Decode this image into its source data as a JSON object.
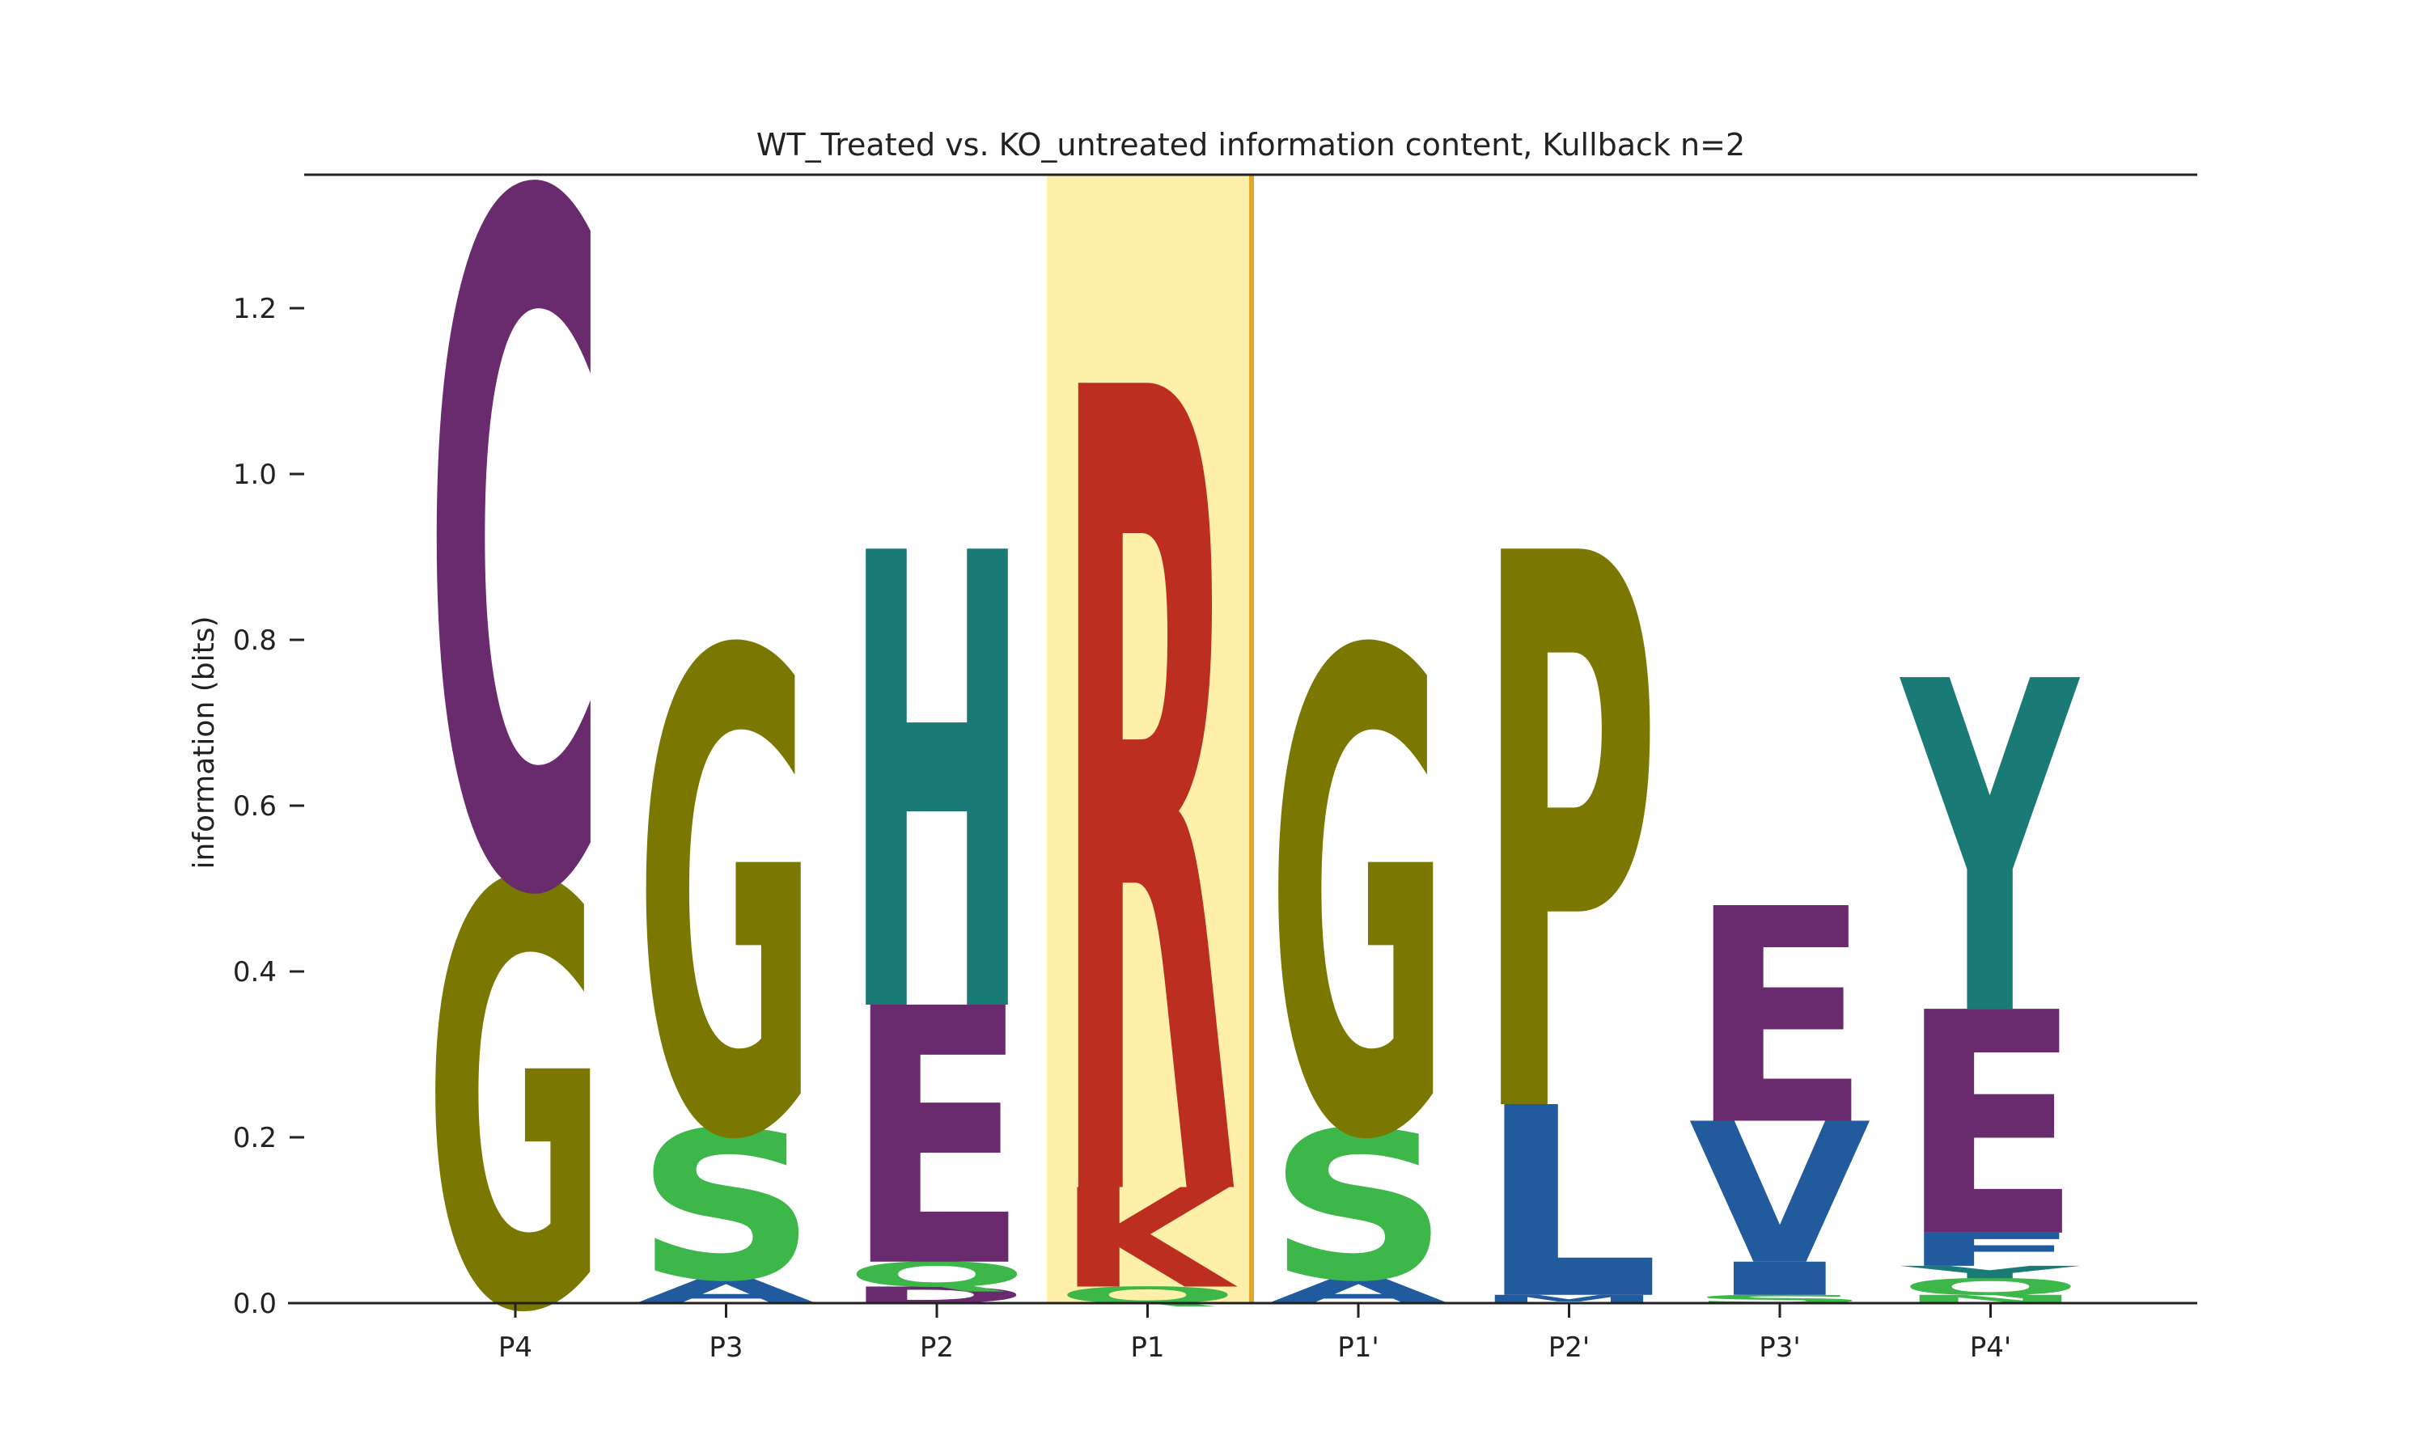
{
  "chart_data": {
    "type": "sequence-logo",
    "title": "WT_Treated vs. KO_untreated information content, Kullback n=2",
    "ylabel": "information (bits)",
    "xlabel": "",
    "ylim": [
      0,
      1.36
    ],
    "yticks": [
      "0.0",
      "0.2",
      "0.4",
      "0.6",
      "0.8",
      "1.0",
      "1.2"
    ],
    "yticks_values": [
      0,
      0.2,
      0.4,
      0.6,
      0.8,
      1.0,
      1.2
    ],
    "highlighted_position": "P1",
    "highlight_color": "#fef0a8",
    "highlight_edge_color": "#e0a82a",
    "residue_colors": {
      "C": "#6a2b6e",
      "G": "#7a7800",
      "S": "#3db74a",
      "A": "#225a9e",
      "H": "#1a7a76",
      "E": "#6a2b6e",
      "D": "#6a2b6e",
      "Q": "#3db74a",
      "R": "#bc2e20",
      "K": "#bc2e20",
      "P": "#7a7800",
      "L": "#225a9e",
      "V": "#225a9e",
      "I": "#225a9e",
      "M": "#225a9e",
      "F": "#225a9e",
      "Y": "#1a7a76",
      "N": "#3db74a",
      "T": "#3db74a",
      "W": "#225a9e"
    },
    "positions": [
      {
        "label": "P4",
        "letters": [
          {
            "aa": "G",
            "height": 0.51
          },
          {
            "aa": "C",
            "height": 0.83
          }
        ]
      },
      {
        "label": "P3",
        "letters": [
          {
            "aa": "A",
            "height": 0.03
          },
          {
            "aa": "S",
            "height": 0.18
          },
          {
            "aa": "G",
            "height": 0.58
          }
        ]
      },
      {
        "label": "P2",
        "letters": [
          {
            "aa": "D",
            "height": 0.02
          },
          {
            "aa": "Q",
            "height": 0.03
          },
          {
            "aa": "E",
            "height": 0.31
          },
          {
            "aa": "H",
            "height": 0.55
          }
        ]
      },
      {
        "label": "P1",
        "letters": [
          {
            "aa": "Q",
            "height": 0.02
          },
          {
            "aa": "K",
            "height": 0.12
          },
          {
            "aa": "R",
            "height": 0.97
          }
        ]
      },
      {
        "label": "P1'",
        "letters": [
          {
            "aa": "A",
            "height": 0.03
          },
          {
            "aa": "S",
            "height": 0.18
          },
          {
            "aa": "G",
            "height": 0.58
          }
        ]
      },
      {
        "label": "P2'",
        "letters": [
          {
            "aa": "M",
            "height": 0.01
          },
          {
            "aa": "L",
            "height": 0.23
          },
          {
            "aa": "P",
            "height": 0.67
          }
        ]
      },
      {
        "label": "P3'",
        "letters": [
          {
            "aa": "S",
            "height": 0.01
          },
          {
            "aa": "I",
            "height": 0.04
          },
          {
            "aa": "V",
            "height": 0.17
          },
          {
            "aa": "E",
            "height": 0.26
          }
        ]
      },
      {
        "label": "P4'",
        "letters": [
          {
            "aa": "N",
            "height": 0.01
          },
          {
            "aa": "Q",
            "height": 0.02
          },
          {
            "aa": "Y",
            "height": 0.015
          },
          {
            "aa": "F",
            "height": 0.04
          },
          {
            "aa": "E",
            "height": 0.27
          },
          {
            "aa": "Y",
            "height": 0.4
          }
        ]
      }
    ]
  }
}
